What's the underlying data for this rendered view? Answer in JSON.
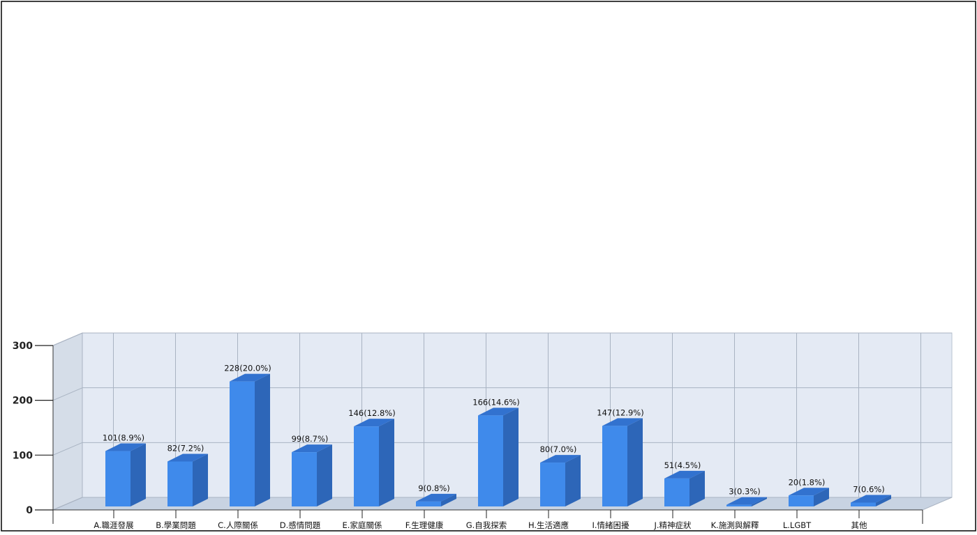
{
  "chart_data": {
    "type": "bar",
    "style": "3d",
    "categories": [
      "A.職涯發展",
      "B.學業問題",
      "C.人際關係",
      "D.感情問題",
      "E.家庭關係",
      "F.生理健康",
      "G.自我探索",
      "H.生活適應",
      "I.情緒困擾",
      "J.精神症狀",
      "K.施測與解釋",
      "L.LGBT",
      "其他"
    ],
    "values": [
      101,
      82,
      228,
      99,
      146,
      9,
      166,
      80,
      147,
      51,
      3,
      20,
      7
    ],
    "data_labels": [
      "101(8.9%)",
      "82(7.2%)",
      "228(20.0%)",
      "99(8.7%)",
      "146(12.8%)",
      "9(0.8%)",
      "166(14.6%)",
      "80(7.0%)",
      "147(12.9%)",
      "51(4.5%)",
      "3(0.3%)",
      "20(1.8%)",
      "7(0.6%)"
    ],
    "yticks": [
      0,
      100,
      200,
      300
    ],
    "ylim": [
      0,
      300
    ],
    "grid": true,
    "colors": {
      "bar_front": "#3f8aeb",
      "bar_side": "#2d66b8",
      "bar_top": "#3272cf",
      "back_wall": "#e4eaf4",
      "side_wall": "#d5dde8",
      "floor": "#c8d3e2",
      "gridline": "#a9b3c2",
      "frame": "#000000"
    }
  }
}
